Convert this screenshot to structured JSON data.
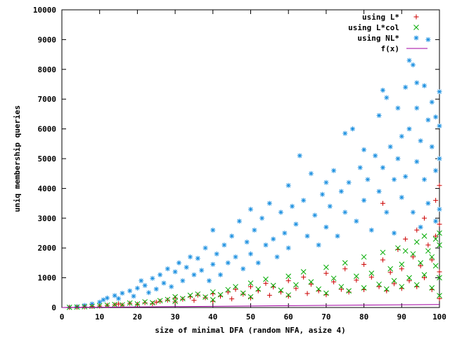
{
  "chart_data": {
    "type": "scatter",
    "title": "",
    "xlabel": "size of minimal DFA (random NFA, asize 4)",
    "ylabel": "uniq membership queries",
    "xlim": [
      0,
      100
    ],
    "ylim": [
      0,
      10000
    ],
    "xticks": [
      "0",
      "10",
      "20",
      "30",
      "40",
      "50",
      "60",
      "70",
      "80",
      "90",
      "100"
    ],
    "yticks": [
      "0",
      "1000",
      "2000",
      "3000",
      "4000",
      "5000",
      "6000",
      "7000",
      "8000",
      "9000",
      "10000"
    ],
    "grid": false,
    "legend_position": "top-right",
    "series": [
      {
        "name": "using L*",
        "marker": "+",
        "color": "#cc0000",
        "points": [
          [
            2,
            5
          ],
          [
            4,
            10
          ],
          [
            6,
            20
          ],
          [
            8,
            35
          ],
          [
            10,
            50
          ],
          [
            12,
            70
          ],
          [
            14,
            90
          ],
          [
            15,
            120
          ],
          [
            16,
            80
          ],
          [
            18,
            140
          ],
          [
            20,
            110
          ],
          [
            22,
            160
          ],
          [
            24,
            130
          ],
          [
            25,
            180
          ],
          [
            26,
            210
          ],
          [
            28,
            250
          ],
          [
            30,
            190
          ],
          [
            30,
            320
          ],
          [
            32,
            280
          ],
          [
            34,
            360
          ],
          [
            35,
            240
          ],
          [
            36,
            420
          ],
          [
            38,
            330
          ],
          [
            40,
            460
          ],
          [
            40,
            210
          ],
          [
            42,
            380
          ],
          [
            44,
            520
          ],
          [
            45,
            290
          ],
          [
            46,
            610
          ],
          [
            48,
            450
          ],
          [
            50,
            700
          ],
          [
            50,
            320
          ],
          [
            52,
            560
          ],
          [
            54,
            810
          ],
          [
            55,
            410
          ],
          [
            56,
            690
          ],
          [
            58,
            520
          ],
          [
            60,
            900
          ],
          [
            60,
            380
          ],
          [
            62,
            640
          ],
          [
            64,
            1020
          ],
          [
            65,
            470
          ],
          [
            66,
            780
          ],
          [
            68,
            560
          ],
          [
            70,
            1150
          ],
          [
            70,
            430
          ],
          [
            72,
            860
          ],
          [
            74,
            610
          ],
          [
            75,
            1300
          ],
          [
            76,
            520
          ],
          [
            78,
            920
          ],
          [
            80,
            1450
          ],
          [
            80,
            600
          ],
          [
            82,
            1020
          ],
          [
            84,
            700
          ],
          [
            85,
            3500
          ],
          [
            85,
            1600
          ],
          [
            86,
            560
          ],
          [
            87,
            1180
          ],
          [
            88,
            800
          ],
          [
            89,
            1950
          ],
          [
            90,
            640
          ],
          [
            90,
            1300
          ],
          [
            91,
            2300
          ],
          [
            92,
            900
          ],
          [
            93,
            1700
          ],
          [
            94,
            700
          ],
          [
            94,
            2600
          ],
          [
            95,
            1400
          ],
          [
            96,
            3000
          ],
          [
            96,
            1000
          ],
          [
            97,
            2100
          ],
          [
            98,
            1600
          ],
          [
            98,
            600
          ],
          [
            99,
            2400
          ],
          [
            99,
            3600
          ],
          [
            100,
            1200
          ],
          [
            100,
            2800
          ],
          [
            100,
            4100
          ],
          [
            100,
            300
          ]
        ]
      },
      {
        "name": "using L*col",
        "marker": "x",
        "color": "#00aa00",
        "points": [
          [
            2,
            5
          ],
          [
            4,
            15
          ],
          [
            6,
            25
          ],
          [
            8,
            40
          ],
          [
            10,
            60
          ],
          [
            12,
            80
          ],
          [
            14,
            100
          ],
          [
            16,
            90
          ],
          [
            18,
            150
          ],
          [
            20,
            120
          ],
          [
            22,
            190
          ],
          [
            24,
            160
          ],
          [
            26,
            230
          ],
          [
            28,
            270
          ],
          [
            30,
            210
          ],
          [
            30,
            360
          ],
          [
            32,
            300
          ],
          [
            34,
            410
          ],
          [
            36,
            450
          ],
          [
            38,
            350
          ],
          [
            40,
            520
          ],
          [
            40,
            260
          ],
          [
            42,
            430
          ],
          [
            44,
            600
          ],
          [
            46,
            700
          ],
          [
            48,
            480
          ],
          [
            50,
            820
          ],
          [
            50,
            360
          ],
          [
            52,
            620
          ],
          [
            54,
            950
          ],
          [
            56,
            740
          ],
          [
            58,
            580
          ],
          [
            60,
            1050
          ],
          [
            60,
            420
          ],
          [
            62,
            760
          ],
          [
            64,
            1200
          ],
          [
            66,
            860
          ],
          [
            68,
            620
          ],
          [
            70,
            1350
          ],
          [
            70,
            480
          ],
          [
            72,
            980
          ],
          [
            74,
            700
          ],
          [
            75,
            1500
          ],
          [
            76,
            560
          ],
          [
            78,
            1050
          ],
          [
            80,
            1700
          ],
          [
            80,
            660
          ],
          [
            82,
            1150
          ],
          [
            84,
            780
          ],
          [
            85,
            1850
          ],
          [
            86,
            620
          ],
          [
            87,
            1300
          ],
          [
            88,
            900
          ],
          [
            89,
            2000
          ],
          [
            90,
            700
          ],
          [
            90,
            1450
          ],
          [
            91,
            1900
          ],
          [
            92,
            1000
          ],
          [
            93,
            1800
          ],
          [
            94,
            760
          ],
          [
            94,
            2200
          ],
          [
            95,
            1500
          ],
          [
            96,
            2400
          ],
          [
            96,
            1100
          ],
          [
            97,
            1900
          ],
          [
            98,
            1700
          ],
          [
            98,
            660
          ],
          [
            99,
            2300
          ],
          [
            99,
            1400
          ],
          [
            100,
            1000
          ],
          [
            100,
            2500
          ],
          [
            100,
            2100
          ],
          [
            100,
            400
          ]
        ]
      },
      {
        "name": "using NL*",
        "marker": "*",
        "color": "#1a8fe0",
        "points": [
          [
            2,
            10
          ],
          [
            4,
            30
          ],
          [
            6,
            70
          ],
          [
            8,
            120
          ],
          [
            10,
            180
          ],
          [
            11,
            260
          ],
          [
            12,
            320
          ],
          [
            14,
            400
          ],
          [
            15,
            300
          ],
          [
            16,
            480
          ],
          [
            18,
            560
          ],
          [
            19,
            380
          ],
          [
            20,
            650
          ],
          [
            21,
            900
          ],
          [
            22,
            740
          ],
          [
            23,
            500
          ],
          [
            24,
            980
          ],
          [
            25,
            620
          ],
          [
            26,
            1100
          ],
          [
            27,
            820
          ],
          [
            28,
            1300
          ],
          [
            29,
            700
          ],
          [
            30,
            1200
          ],
          [
            31,
            1500
          ],
          [
            32,
            900
          ],
          [
            33,
            1350
          ],
          [
            34,
            1700
          ],
          [
            35,
            1100
          ],
          [
            36,
            1650
          ],
          [
            37,
            1250
          ],
          [
            38,
            2000
          ],
          [
            39,
            900
          ],
          [
            40,
            2600
          ],
          [
            40,
            1450
          ],
          [
            41,
            1800
          ],
          [
            42,
            1100
          ],
          [
            43,
            2100
          ],
          [
            44,
            1500
          ],
          [
            45,
            2400
          ],
          [
            46,
            1700
          ],
          [
            47,
            2900
          ],
          [
            48,
            1300
          ],
          [
            49,
            2200
          ],
          [
            50,
            3300
          ],
          [
            50,
            1800
          ],
          [
            51,
            2600
          ],
          [
            52,
            1500
          ],
          [
            53,
            3000
          ],
          [
            54,
            2100
          ],
          [
            55,
            3500
          ],
          [
            56,
            2300
          ],
          [
            57,
            1700
          ],
          [
            58,
            3200
          ],
          [
            59,
            2500
          ],
          [
            60,
            4100
          ],
          [
            60,
            2000
          ],
          [
            61,
            3400
          ],
          [
            62,
            2800
          ],
          [
            63,
            5100
          ],
          [
            64,
            3600
          ],
          [
            65,
            2400
          ],
          [
            66,
            4500
          ],
          [
            67,
            3100
          ],
          [
            68,
            2100
          ],
          [
            69,
            3800
          ],
          [
            70,
            4200
          ],
          [
            70,
            2700
          ],
          [
            71,
            3400
          ],
          [
            72,
            4600
          ],
          [
            73,
            2400
          ],
          [
            74,
            3900
          ],
          [
            75,
            5850
          ],
          [
            75,
            3200
          ],
          [
            76,
            4200
          ],
          [
            77,
            6000
          ],
          [
            78,
            2900
          ],
          [
            79,
            4700
          ],
          [
            80,
            3600
          ],
          [
            80,
            5300
          ],
          [
            81,
            4300
          ],
          [
            82,
            2600
          ],
          [
            83,
            5100
          ],
          [
            84,
            3900
          ],
          [
            84,
            6450
          ],
          [
            85,
            7300
          ],
          [
            85,
            4700
          ],
          [
            86,
            7050
          ],
          [
            86,
            3200
          ],
          [
            87,
            5400
          ],
          [
            88,
            4300
          ],
          [
            88,
            2500
          ],
          [
            89,
            6700
          ],
          [
            89,
            5000
          ],
          [
            90,
            3700
          ],
          [
            90,
            5750
          ],
          [
            91,
            7400
          ],
          [
            91,
            4400
          ],
          [
            92,
            8300
          ],
          [
            92,
            6000
          ],
          [
            93,
            8150
          ],
          [
            93,
            3200
          ],
          [
            94,
            6700
          ],
          [
            94,
            4900
          ],
          [
            94,
            7550
          ],
          [
            95,
            5600
          ],
          [
            95,
            2700
          ],
          [
            96,
            7450
          ],
          [
            96,
            4300
          ],
          [
            97,
            9000
          ],
          [
            97,
            6300
          ],
          [
            97,
            3500
          ],
          [
            98,
            5400
          ],
          [
            98,
            6900
          ],
          [
            99,
            4600
          ],
          [
            99,
            6400
          ],
          [
            99,
            2900
          ],
          [
            100,
            7250
          ],
          [
            100,
            5000
          ],
          [
            100,
            3300
          ],
          [
            100,
            6100
          ]
        ]
      },
      {
        "name": "f(x)",
        "marker": "line",
        "color": "#a000a0",
        "function": "linear",
        "points": [
          [
            0,
            0
          ],
          [
            100,
            100
          ]
        ]
      }
    ]
  }
}
